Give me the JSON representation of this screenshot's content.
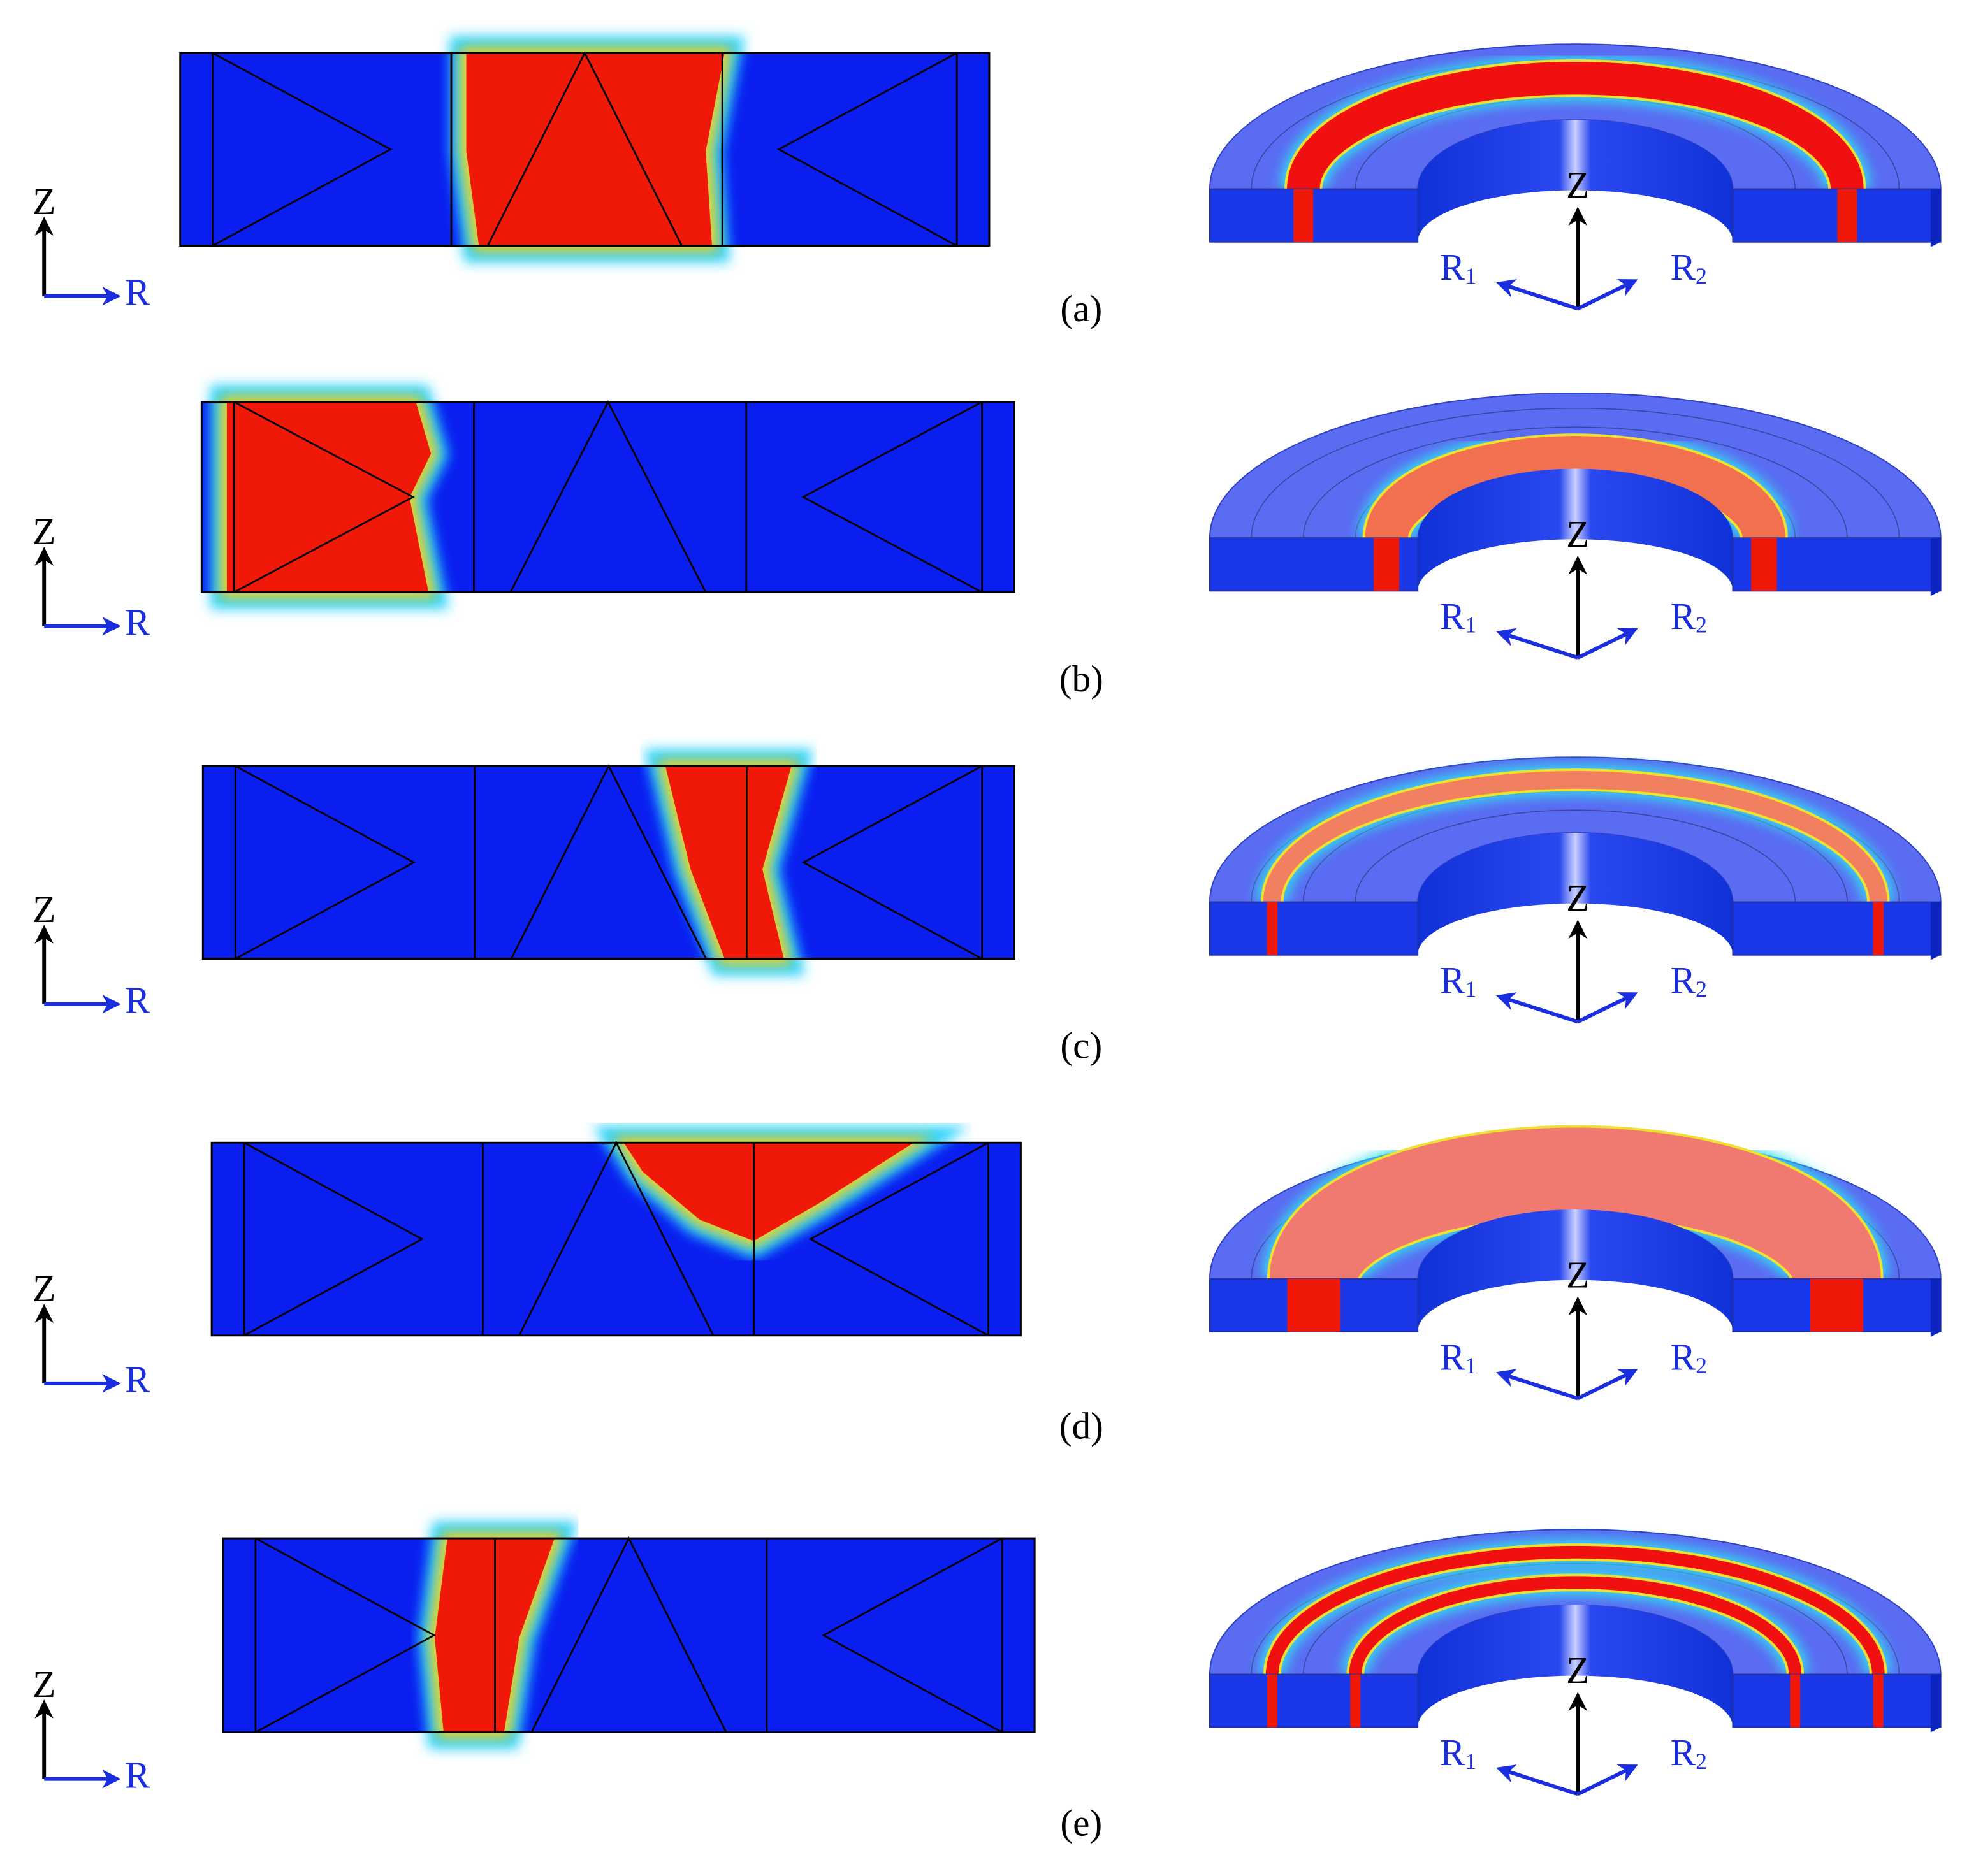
{
  "panels": [
    {
      "label": "(a)",
      "axes_2d": {
        "z": "Z",
        "r": "R"
      },
      "axes_3d": {
        "z": "Z",
        "r1": {
          "base": "R",
          "sub": "1"
        },
        "r2": {
          "base": "R",
          "sub": "2"
        }
      }
    },
    {
      "label": "(b)",
      "axes_2d": {
        "z": "Z",
        "r": "R"
      },
      "axes_3d": {
        "z": "Z",
        "r1": {
          "base": "R",
          "sub": "1"
        },
        "r2": {
          "base": "R",
          "sub": "2"
        }
      }
    },
    {
      "label": "(c)",
      "axes_2d": {
        "z": "Z",
        "r": "R"
      },
      "axes_3d": {
        "z": "Z",
        "r1": {
          "base": "R",
          "sub": "1"
        },
        "r2": {
          "base": "R",
          "sub": "2"
        }
      }
    },
    {
      "label": "(d)",
      "axes_2d": {
        "z": "Z",
        "r": "R"
      },
      "axes_3d": {
        "z": "Z",
        "r1": {
          "base": "R",
          "sub": "1"
        },
        "r2": {
          "base": "R",
          "sub": "2"
        }
      }
    },
    {
      "label": "(e)",
      "axes_2d": {
        "z": "Z",
        "r": "R"
      },
      "axes_3d": {
        "z": "Z",
        "r1": {
          "base": "R",
          "sub": "1"
        },
        "r2": {
          "base": "R",
          "sub": "2"
        }
      }
    }
  ]
}
